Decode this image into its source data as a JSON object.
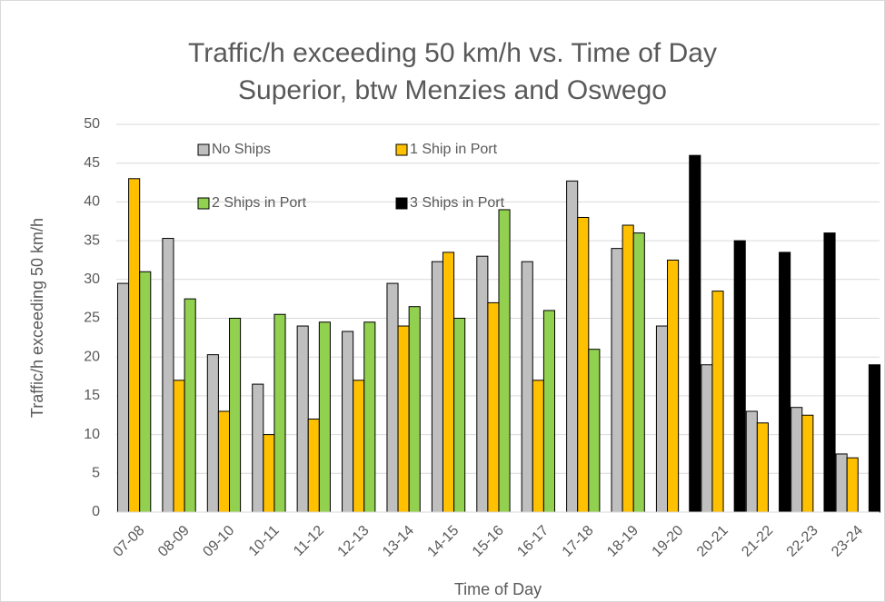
{
  "chart_data": {
    "type": "bar",
    "title": [
      "Traffic/h exceeding 50 km/h vs. Time of Day",
      "Superior, btw Menzies and Oswego"
    ],
    "x_label": "Time of Day",
    "y_label": "Traffic/h exceeding 50 km/h",
    "categories": [
      "07-08",
      "08-09",
      "09-10",
      "10-11",
      "11-12",
      "12-13",
      "13-14",
      "14-15",
      "15-16",
      "16-17",
      "17-18",
      "18-19",
      "19-20",
      "20-21",
      "21-22",
      "22-23",
      "23-24"
    ],
    "series": [
      {
        "name": "No Ships",
        "color": "#bfbfbf",
        "values": [
          29.5,
          35.3,
          20.3,
          16.5,
          24,
          23.3,
          29.5,
          32.3,
          33,
          32.3,
          42.7,
          34,
          24,
          19,
          13,
          13.5,
          7.5
        ]
      },
      {
        "name": "1 Ship in Port",
        "color": "#ffc000",
        "values": [
          43,
          17,
          13,
          10,
          12,
          17,
          24,
          33.5,
          27,
          17,
          38,
          37,
          32.5,
          28.5,
          11.5,
          12.5,
          7
        ]
      },
      {
        "name": "2 Ships in Port",
        "color": "#92d050",
        "values": [
          31,
          27.5,
          25,
          25.5,
          24.5,
          24.5,
          26.5,
          25,
          39,
          26,
          21,
          36,
          null,
          null,
          null,
          null,
          null
        ]
      },
      {
        "name": "3 Ships in Port",
        "color": "#000000",
        "values": [
          null,
          null,
          null,
          null,
          null,
          null,
          null,
          null,
          null,
          null,
          null,
          null,
          46,
          35,
          33.5,
          36,
          19
        ]
      }
    ],
    "ylim": [
      0,
      50
    ],
    "yticks": [
      0,
      5,
      10,
      15,
      20,
      25,
      30,
      35,
      40,
      45,
      50
    ],
    "grid": true
  }
}
